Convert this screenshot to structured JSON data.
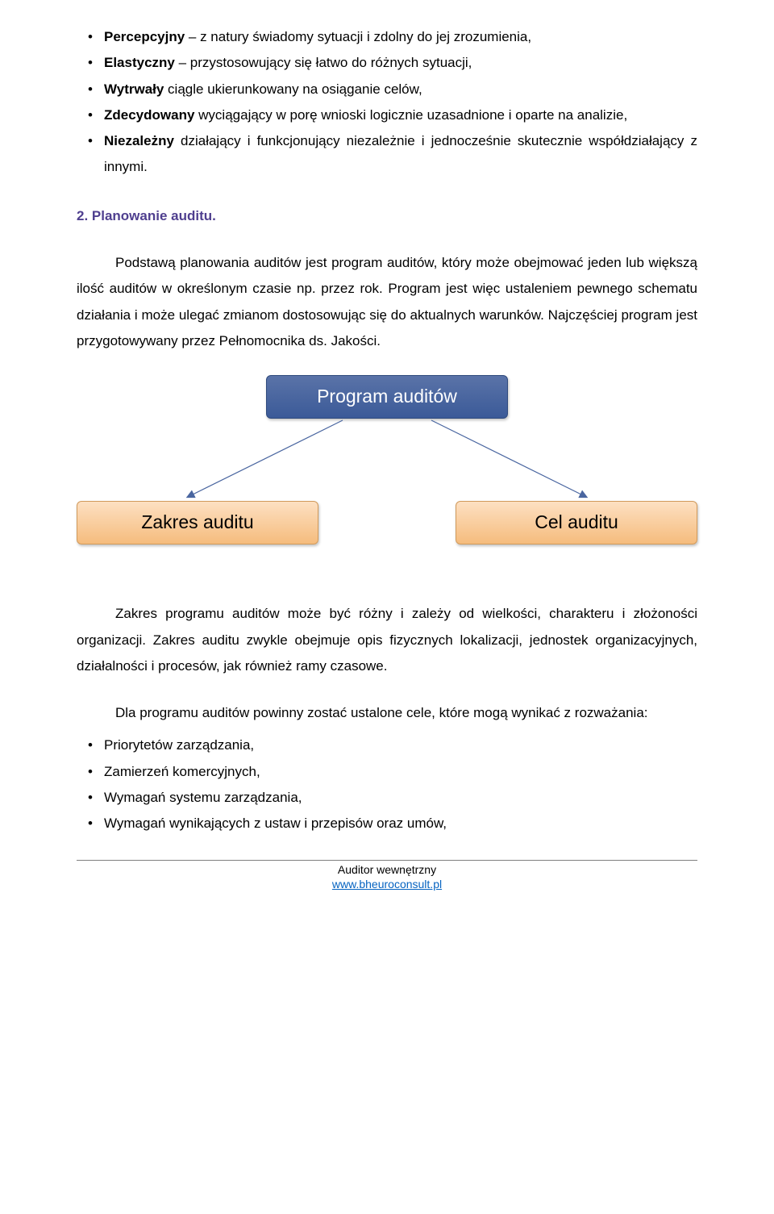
{
  "colors": {
    "heading": "#4f3f8f",
    "root_bg_top": "#5a73a8",
    "root_bg_bottom": "#3b5a98",
    "root_border": "#2f4a7d",
    "leaf_bg_top": "#fde0c2",
    "leaf_bg_bottom": "#f5bc7d",
    "leaf_border": "#d19a5b",
    "arrow": "#4a66a0"
  },
  "traits": [
    {
      "term": "Percepcyjny",
      "desc": " – z natury świadomy sytuacji i zdolny do jej zrozumienia,"
    },
    {
      "term": "Elastyczny",
      "desc": " – przystosowujący się łatwo do różnych sytuacji,"
    },
    {
      "term": "Wytrwały",
      "desc": " ciągle ukierunkowany na osiąganie celów,"
    },
    {
      "term": "Zdecydowany",
      "desc": " wyciągający w porę wnioski logicznie uzasadnione i oparte na analizie,"
    },
    {
      "term": "Niezależny",
      "desc": " działający i funkcjonujący niezależnie i jednocześnie skutecznie współdziałający z innymi."
    }
  ],
  "section_heading": "2. Planowanie auditu.",
  "para1": "Podstawą planowania auditów jest program auditów, który może obejmować jeden lub większą ilość auditów w określonym czasie np. przez rok. Program jest więc ustaleniem pewnego schematu działania i może ulegać zmianom dostosowując się do aktualnych warunków. Najczęściej program jest przygotowywany przez Pełnomocnika ds. Jakości.",
  "diagram": {
    "root": "Program auditów",
    "left": "Zakres auditu",
    "right": "Cel auditu"
  },
  "para2": "Zakres programu auditów może być różny i zależy od wielkości, charakteru i złożoności organizacji. Zakres auditu zwykle obejmuje opis fizycznych lokalizacji, jednostek organizacyjnych, działalności i procesów, jak również ramy czasowe.",
  "para3_lead": "Dla programu auditów powinny zostać ustalone cele, które mogą wynikać z rozważania:",
  "considerations": [
    "Priorytetów zarządzania,",
    "Zamierzeń komercyjnych,",
    "Wymagań systemu zarządzania,",
    "Wymagań wynikających z ustaw i przepisów oraz umów,"
  ],
  "footer": {
    "line1": "Auditor wewnętrzny",
    "link": "www.bheuroconsult.pl"
  }
}
